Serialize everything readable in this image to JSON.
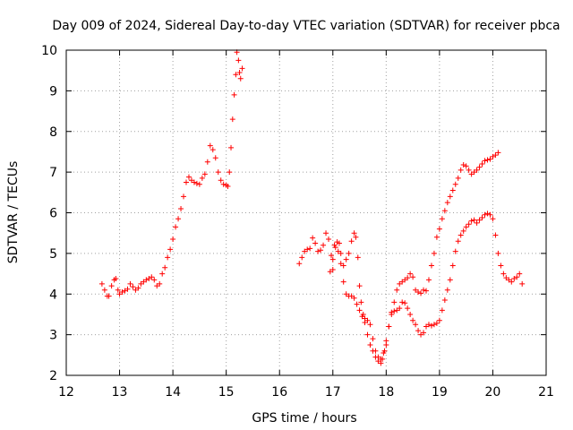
{
  "chart_data": {
    "type": "scatter",
    "title": "Day 009 of 2024, Sidereal Day-to-day VTEC variation (SDTVAR) for receiver pbca",
    "xlabel": "GPS time / hours",
    "ylabel": "SDTVAR / TECUs",
    "xlim": [
      12,
      21
    ],
    "ylim": [
      2,
      10
    ],
    "xticks": [
      12,
      13,
      14,
      15,
      16,
      17,
      18,
      19,
      20,
      21
    ],
    "yticks": [
      2,
      3,
      4,
      5,
      6,
      7,
      8,
      9,
      10
    ],
    "grid": true,
    "marker": "+",
    "color": "#ff0000",
    "series": [
      {
        "name": "segment-1",
        "points": [
          [
            12.67,
            4.25
          ],
          [
            12.72,
            4.1
          ],
          [
            12.77,
            3.95
          ],
          [
            12.8,
            3.95
          ],
          [
            12.85,
            4.2
          ],
          [
            12.9,
            4.35
          ],
          [
            12.93,
            4.38
          ],
          [
            12.97,
            4.1
          ],
          [
            13.0,
            4.0
          ],
          [
            13.05,
            4.05
          ],
          [
            13.1,
            4.08
          ],
          [
            13.15,
            4.12
          ],
          [
            13.2,
            4.25
          ],
          [
            13.25,
            4.18
          ],
          [
            13.3,
            4.1
          ],
          [
            13.35,
            4.15
          ],
          [
            13.4,
            4.25
          ],
          [
            13.45,
            4.3
          ],
          [
            13.5,
            4.35
          ],
          [
            13.55,
            4.38
          ],
          [
            13.6,
            4.42
          ],
          [
            13.65,
            4.35
          ],
          [
            13.7,
            4.2
          ],
          [
            13.75,
            4.25
          ],
          [
            13.8,
            4.5
          ],
          [
            13.85,
            4.65
          ],
          [
            13.9,
            4.9
          ],
          [
            13.95,
            5.1
          ],
          [
            14.0,
            5.35
          ],
          [
            14.05,
            5.65
          ],
          [
            14.1,
            5.85
          ],
          [
            14.15,
            6.1
          ],
          [
            14.2,
            6.4
          ],
          [
            14.25,
            6.75
          ],
          [
            14.3,
            6.88
          ],
          [
            14.35,
            6.8
          ],
          [
            14.4,
            6.75
          ],
          [
            14.45,
            6.72
          ],
          [
            14.5,
            6.7
          ],
          [
            14.55,
            6.85
          ],
          [
            14.6,
            6.95
          ],
          [
            14.65,
            7.25
          ],
          [
            14.7,
            7.65
          ],
          [
            14.75,
            7.55
          ],
          [
            14.8,
            7.35
          ],
          [
            14.85,
            7.0
          ],
          [
            14.9,
            6.8
          ],
          [
            14.95,
            6.7
          ],
          [
            15.0,
            6.68
          ],
          [
            15.03,
            6.65
          ],
          [
            15.06,
            7.0
          ],
          [
            15.09,
            7.6
          ],
          [
            15.12,
            8.3
          ],
          [
            15.15,
            8.9
          ],
          [
            15.18,
            9.4
          ],
          [
            15.2,
            9.95
          ],
          [
            15.23,
            9.75
          ],
          [
            15.25,
            9.45
          ],
          [
            15.27,
            9.3
          ],
          [
            15.3,
            9.55
          ]
        ]
      },
      {
        "name": "segment-2",
        "points": [
          [
            16.37,
            4.75
          ],
          [
            16.42,
            4.9
          ],
          [
            16.47,
            5.05
          ],
          [
            16.52,
            5.1
          ],
          [
            16.57,
            5.12
          ],
          [
            16.62,
            5.38
          ],
          [
            16.67,
            5.25
          ],
          [
            16.72,
            5.05
          ],
          [
            16.77,
            5.08
          ],
          [
            16.82,
            5.2
          ],
          [
            16.87,
            5.5
          ],
          [
            16.92,
            5.35
          ],
          [
            16.97,
            4.95
          ],
          [
            17.0,
            4.6
          ],
          [
            17.03,
            5.2
          ],
          [
            17.08,
            5.28
          ],
          [
            17.12,
            5.25
          ],
          [
            17.15,
            5.0
          ],
          [
            17.2,
            4.7
          ],
          [
            17.25,
            4.85
          ],
          [
            17.3,
            5.0
          ],
          [
            17.35,
            5.3
          ],
          [
            17.4,
            5.5
          ],
          [
            17.43,
            5.4
          ],
          [
            17.47,
            4.9
          ],
          [
            17.5,
            4.2
          ],
          [
            17.53,
            3.8
          ],
          [
            17.57,
            3.5
          ],
          [
            17.6,
            3.3
          ],
          [
            17.65,
            3.0
          ],
          [
            17.7,
            2.75
          ],
          [
            17.75,
            2.6
          ],
          [
            17.8,
            2.45
          ],
          [
            17.85,
            2.35
          ],
          [
            17.9,
            2.3
          ],
          [
            17.93,
            2.4
          ],
          [
            17.97,
            2.6
          ],
          [
            18.0,
            2.85
          ],
          [
            18.05,
            3.2
          ],
          [
            18.1,
            3.5
          ],
          [
            18.15,
            3.8
          ],
          [
            18.2,
            4.1
          ],
          [
            18.25,
            4.25
          ],
          [
            18.3,
            4.3
          ],
          [
            18.35,
            4.35
          ],
          [
            18.4,
            4.4
          ],
          [
            18.45,
            4.5
          ],
          [
            18.5,
            4.42
          ],
          [
            18.55,
            4.1
          ],
          [
            18.6,
            4.05
          ],
          [
            18.65,
            4.02
          ],
          [
            18.7,
            4.1
          ],
          [
            18.75,
            4.08
          ],
          [
            18.8,
            4.35
          ],
          [
            18.85,
            4.7
          ],
          [
            18.9,
            5.0
          ],
          [
            18.95,
            5.4
          ],
          [
            19.0,
            5.6
          ],
          [
            19.05,
            5.85
          ],
          [
            19.1,
            6.05
          ],
          [
            19.15,
            6.25
          ],
          [
            19.2,
            6.4
          ],
          [
            19.25,
            6.55
          ],
          [
            19.3,
            6.7
          ],
          [
            19.35,
            6.85
          ],
          [
            19.4,
            7.05
          ],
          [
            19.45,
            7.18
          ],
          [
            19.5,
            7.15
          ],
          [
            19.55,
            7.05
          ],
          [
            19.6,
            6.95
          ],
          [
            19.65,
            7.0
          ],
          [
            19.7,
            7.05
          ],
          [
            19.75,
            7.12
          ],
          [
            19.8,
            7.2
          ],
          [
            19.85,
            7.28
          ],
          [
            19.9,
            7.3
          ],
          [
            19.95,
            7.32
          ],
          [
            20.0,
            7.38
          ],
          [
            20.05,
            7.42
          ],
          [
            20.1,
            7.48
          ]
        ]
      },
      {
        "name": "segment-3",
        "points": [
          [
            16.95,
            4.55
          ],
          [
            17.0,
            4.85
          ],
          [
            17.05,
            5.15
          ],
          [
            17.1,
            5.05
          ],
          [
            17.15,
            4.75
          ],
          [
            17.2,
            4.3
          ],
          [
            17.25,
            4.0
          ],
          [
            17.3,
            3.95
          ],
          [
            17.35,
            3.95
          ],
          [
            17.4,
            3.9
          ],
          [
            17.45,
            3.75
          ],
          [
            17.5,
            3.6
          ],
          [
            17.55,
            3.45
          ],
          [
            17.6,
            3.4
          ],
          [
            17.65,
            3.35
          ],
          [
            17.7,
            3.25
          ],
          [
            17.75,
            2.9
          ],
          [
            17.8,
            2.6
          ],
          [
            17.85,
            2.45
          ],
          [
            17.9,
            2.4
          ],
          [
            17.95,
            2.55
          ],
          [
            18.0,
            2.75
          ],
          [
            18.05,
            3.2
          ],
          [
            18.1,
            3.55
          ],
          [
            18.15,
            3.58
          ],
          [
            18.2,
            3.6
          ],
          [
            18.25,
            3.65
          ],
          [
            18.3,
            3.8
          ],
          [
            18.35,
            3.78
          ],
          [
            18.4,
            3.65
          ],
          [
            18.45,
            3.5
          ],
          [
            18.5,
            3.35
          ],
          [
            18.55,
            3.25
          ],
          [
            18.6,
            3.1
          ],
          [
            18.65,
            3.0
          ],
          [
            18.7,
            3.05
          ],
          [
            18.75,
            3.2
          ],
          [
            18.8,
            3.25
          ],
          [
            18.85,
            3.22
          ],
          [
            18.9,
            3.25
          ],
          [
            18.95,
            3.28
          ],
          [
            19.0,
            3.35
          ],
          [
            19.05,
            3.6
          ],
          [
            19.1,
            3.85
          ],
          [
            19.15,
            4.1
          ],
          [
            19.2,
            4.35
          ],
          [
            19.25,
            4.7
          ],
          [
            19.3,
            5.05
          ],
          [
            19.35,
            5.3
          ],
          [
            19.4,
            5.45
          ],
          [
            19.45,
            5.55
          ],
          [
            19.5,
            5.65
          ],
          [
            19.55,
            5.72
          ],
          [
            19.6,
            5.8
          ],
          [
            19.65,
            5.82
          ],
          [
            19.7,
            5.75
          ],
          [
            19.75,
            5.82
          ],
          [
            19.8,
            5.88
          ],
          [
            19.85,
            5.95
          ],
          [
            19.9,
            5.98
          ],
          [
            19.95,
            5.95
          ],
          [
            20.0,
            5.85
          ],
          [
            20.05,
            5.45
          ],
          [
            20.1,
            5.0
          ],
          [
            20.15,
            4.7
          ],
          [
            20.2,
            4.5
          ],
          [
            20.25,
            4.4
          ],
          [
            20.3,
            4.35
          ],
          [
            20.35,
            4.3
          ],
          [
            20.4,
            4.38
          ],
          [
            20.45,
            4.42
          ],
          [
            20.5,
            4.5
          ],
          [
            20.55,
            4.25
          ]
        ]
      }
    ]
  }
}
